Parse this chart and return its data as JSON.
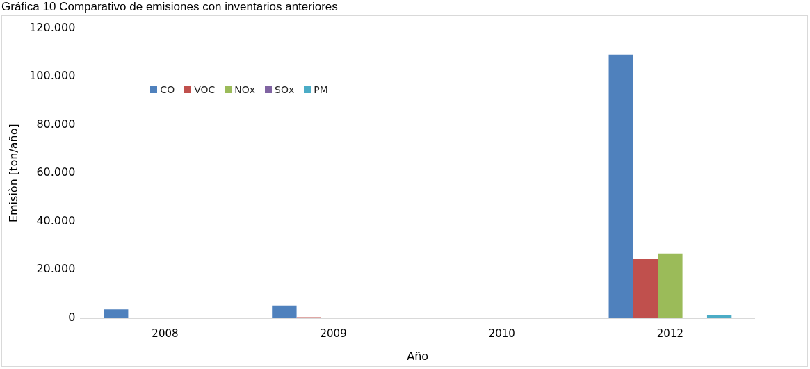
{
  "chart_data": {
    "type": "bar",
    "title": "Gráfica 10 Comparativo de emisiones con inventarios anteriores",
    "xlabel": "Año",
    "ylabel": "Emisiòn [ton/año]",
    "categories": [
      "2008",
      "2009",
      "2010",
      "2012"
    ],
    "series": [
      {
        "name": "CO",
        "color": "#4f81bd",
        "values": [
          3600,
          5200,
          null,
          109000
        ]
      },
      {
        "name": "VOC",
        "color": "#c0504d",
        "values": [
          null,
          400,
          0,
          24400
        ]
      },
      {
        "name": "NOx",
        "color": "#9bbb59",
        "values": [
          0,
          null,
          0,
          26800
        ]
      },
      {
        "name": "SOx",
        "color": "#8064a2",
        "values": [
          0,
          0,
          0,
          0
        ]
      },
      {
        "name": "PM",
        "color": "#4bacc6",
        "values": [
          0,
          0,
          0,
          1100
        ]
      }
    ],
    "ylim": [
      0,
      120000
    ],
    "yticks": [
      {
        "value": 0,
        "label": "0"
      },
      {
        "value": 20000,
        "label": "20.000"
      },
      {
        "value": 40000,
        "label": "40.000"
      },
      {
        "value": 60000,
        "label": "60.000"
      },
      {
        "value": 80000,
        "label": "80.000"
      },
      {
        "value": 100000,
        "label": "100.000"
      },
      {
        "value": 120000,
        "label": "120.000"
      }
    ],
    "grid": false,
    "legend": "top left"
  }
}
